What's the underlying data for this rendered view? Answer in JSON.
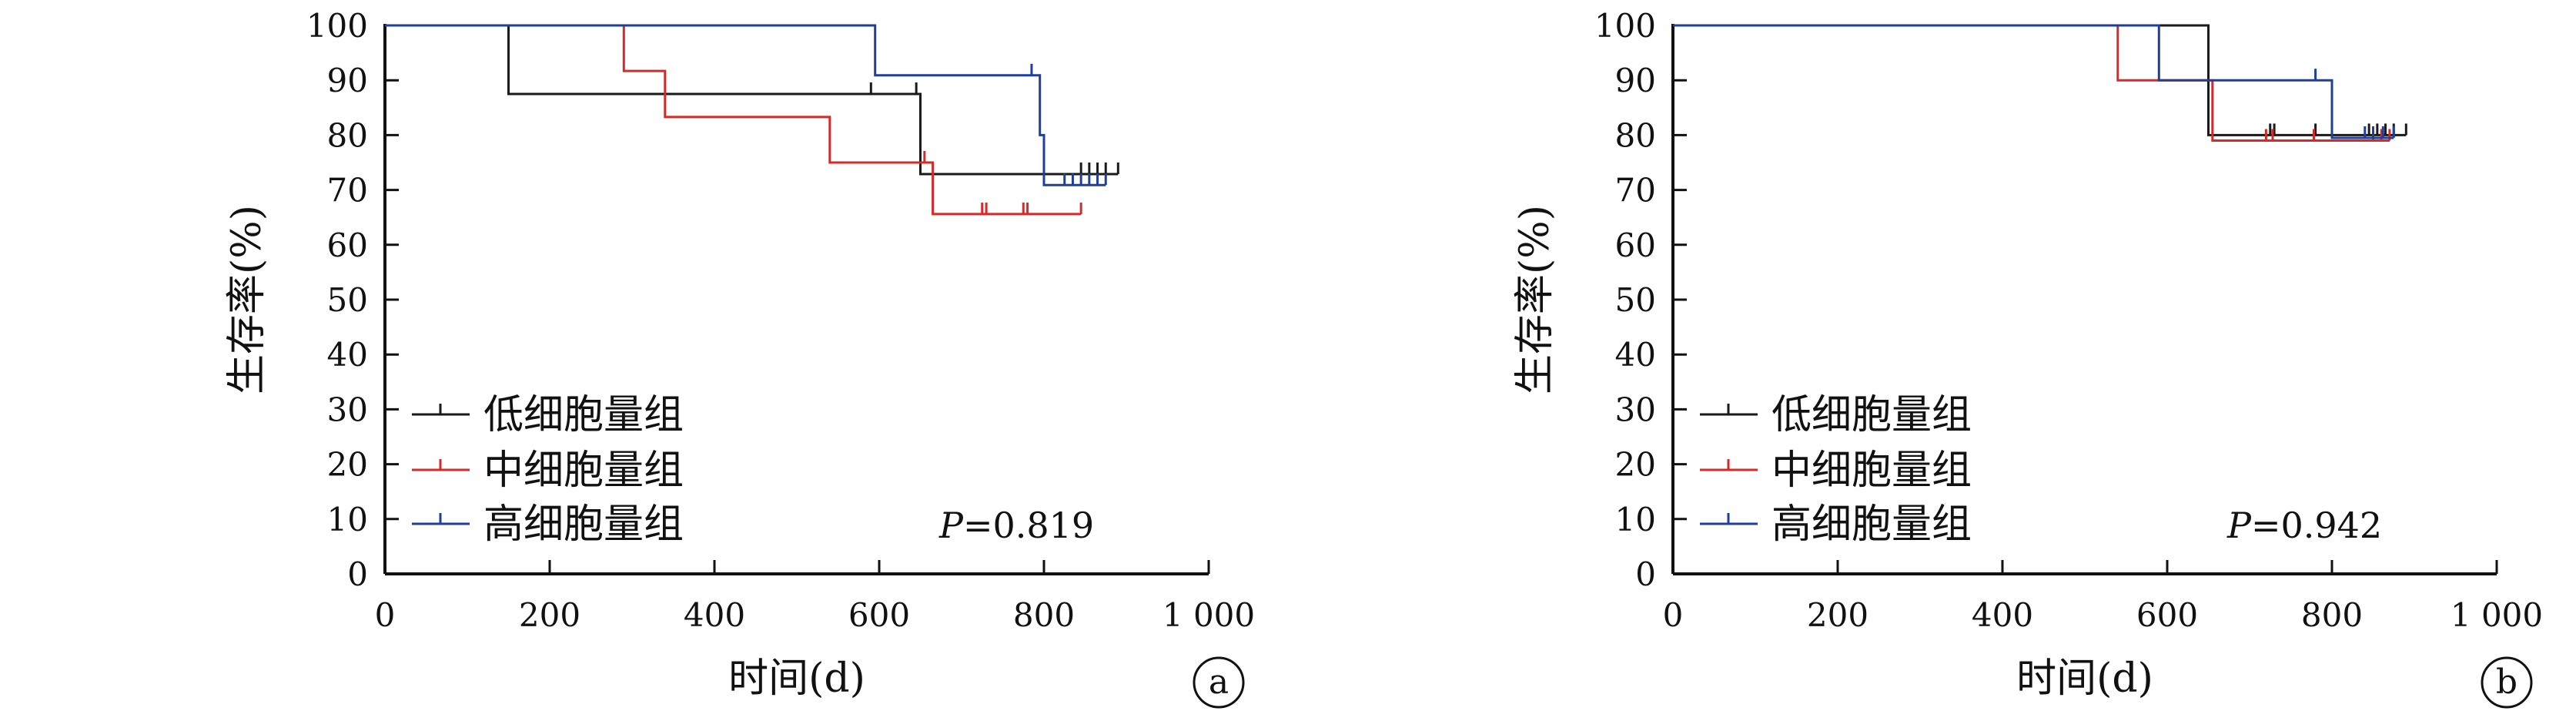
{
  "chart_data": [
    {
      "type": "line",
      "panel_label": "a",
      "p_value_label": "P",
      "p_value": "=0.819",
      "ylabel": "生存率(%)",
      "xlabel": "时间(d)",
      "xlim": [
        0,
        1000
      ],
      "ylim": [
        0,
        100
      ],
      "x_ticks": [
        0,
        200,
        400,
        600,
        800,
        1000
      ],
      "x_tick_labels": [
        "0",
        "200",
        "400",
        "600",
        "800",
        "1 000"
      ],
      "y_ticks": [
        0,
        10,
        20,
        30,
        40,
        50,
        60,
        70,
        80,
        90,
        100
      ],
      "y_tick_labels": [
        "0",
        "10",
        "20",
        "30",
        "40",
        "50",
        "60",
        "70",
        "80",
        "90",
        "100"
      ],
      "legend_position": "bottom-left",
      "series": [
        {
          "name": "低细胞量组",
          "color": "#1a1a1a",
          "steps": [
            [
              0,
              100
            ],
            [
              150,
              100
            ],
            [
              150,
              87.5
            ],
            [
              650,
              87.5
            ],
            [
              650,
              72.9
            ],
            [
              890,
              72.9
            ]
          ],
          "censored": [
            [
              590,
              87.5
            ],
            [
              645,
              87.5
            ],
            [
              845,
              72.9
            ],
            [
              855,
              72.9
            ],
            [
              865,
              72.9
            ],
            [
              875,
              72.9
            ],
            [
              890,
              72.9
            ]
          ]
        },
        {
          "name": "中细胞量组",
          "color": "#d42a2a",
          "steps": [
            [
              0,
              100
            ],
            [
              290,
              100
            ],
            [
              290,
              91.7
            ],
            [
              340,
              91.7
            ],
            [
              340,
              83.3
            ],
            [
              540,
              83.3
            ],
            [
              540,
              75
            ],
            [
              665,
              75
            ],
            [
              665,
              65.6
            ],
            [
              845,
              65.6
            ]
          ],
          "censored": [
            [
              655,
              75
            ],
            [
              725,
              65.6
            ],
            [
              730,
              65.6
            ],
            [
              775,
              65.6
            ],
            [
              780,
              65.6
            ],
            [
              845,
              65.6
            ]
          ]
        },
        {
          "name": "高细胞量组",
          "color": "#1f3f99",
          "steps": [
            [
              0,
              100
            ],
            [
              595,
              100
            ],
            [
              595,
              90.9
            ],
            [
              795,
              90.9
            ],
            [
              795,
              80
            ],
            [
              800,
              80
            ],
            [
              800,
              70.9
            ],
            [
              875,
              70.9
            ]
          ],
          "censored": [
            [
              785,
              90.9
            ],
            [
              825,
              70.9
            ],
            [
              835,
              70.9
            ],
            [
              845,
              70.9
            ],
            [
              855,
              70.9
            ],
            [
              865,
              70.9
            ],
            [
              875,
              70.9
            ]
          ]
        }
      ]
    },
    {
      "type": "line",
      "panel_label": "b",
      "p_value_label": "P",
      "p_value": "=0.942",
      "ylabel": "生存率(%)",
      "xlabel": "时间(d)",
      "xlim": [
        0,
        1000
      ],
      "ylim": [
        0,
        100
      ],
      "x_ticks": [
        0,
        200,
        400,
        600,
        800,
        1000
      ],
      "x_tick_labels": [
        "0",
        "200",
        "400",
        "600",
        "800",
        "1 000"
      ],
      "y_ticks": [
        0,
        10,
        20,
        30,
        40,
        50,
        60,
        70,
        80,
        90,
        100
      ],
      "y_tick_labels": [
        "0",
        "10",
        "20",
        "30",
        "40",
        "50",
        "60",
        "70",
        "80",
        "90",
        "100"
      ],
      "legend_position": "bottom-left",
      "series": [
        {
          "name": "低细胞量组",
          "color": "#1a1a1a",
          "steps": [
            [
              0,
              100
            ],
            [
              650,
              100
            ],
            [
              650,
              80
            ],
            [
              890,
              80
            ]
          ],
          "censored": [
            [
              725,
              80
            ],
            [
              730,
              80
            ],
            [
              780,
              80
            ],
            [
              845,
              80
            ],
            [
              855,
              80
            ],
            [
              865,
              80
            ],
            [
              875,
              80
            ],
            [
              890,
              80
            ]
          ]
        },
        {
          "name": "中细胞量组",
          "color": "#d42a2a",
          "steps": [
            [
              0,
              100
            ],
            [
              540,
              100
            ],
            [
              540,
              90
            ],
            [
              655,
              90
            ],
            [
              655,
              79
            ],
            [
              870,
              79
            ]
          ],
          "censored": [
            [
              720,
              79
            ],
            [
              728,
              79
            ],
            [
              778,
              79
            ],
            [
              850,
              79
            ],
            [
              860,
              79
            ],
            [
              870,
              79
            ]
          ]
        },
        {
          "name": "高细胞量组",
          "color": "#1f3f99",
          "steps": [
            [
              0,
              100
            ],
            [
              590,
              100
            ],
            [
              590,
              90
            ],
            [
              800,
              90
            ],
            [
              800,
              79.5
            ],
            [
              875,
              79.5
            ]
          ],
          "censored": [
            [
              780,
              90
            ],
            [
              840,
              79.5
            ],
            [
              850,
              79.5
            ],
            [
              862,
              79.5
            ],
            [
              875,
              79.5
            ]
          ]
        }
      ]
    }
  ]
}
